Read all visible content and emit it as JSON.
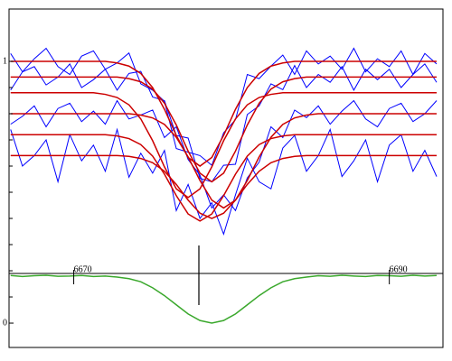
{
  "chart_data": {
    "type": "line",
    "x": [
      6666,
      6666.75,
      6667.5,
      6668.25,
      6669,
      6669.75,
      6670.5,
      6671.25,
      6672,
      6672.75,
      6673.5,
      6674.25,
      6675,
      6675.75,
      6676.5,
      6677.25,
      6678,
      6678.75,
      6679.5,
      6680.25,
      6681,
      6681.75,
      6682.5,
      6683.25,
      6684,
      6684.75,
      6685.5,
      6686.25,
      6687,
      6687.75,
      6688.5,
      6689.25,
      6690,
      6690.75,
      6691.5,
      6692.25,
      6693
    ],
    "series": [
      {
        "color": "#0000ff",
        "values": [
          1.03,
          0.96,
          1.01,
          1.05,
          0.98,
          0.95,
          1.02,
          1.04,
          0.97,
          0.994,
          1.032,
          0.914,
          0.89,
          0.847,
          0.667,
          0.653,
          0.64,
          0.603,
          0.727,
          0.777,
          0.95,
          0.934,
          0.982,
          1.024,
          0.95,
          1.04,
          0.99,
          1.02,
          0.97,
          1.05,
          0.96,
          1.01,
          0.98,
          1.04,
          0.95,
          1.03,
          0.99
        ]
      },
      {
        "color": "#0000ff",
        "values": [
          0.89,
          0.96,
          0.98,
          0.91,
          0.94,
          0.99,
          0.9,
          0.93,
          0.97,
          0.89,
          0.954,
          0.962,
          0.864,
          0.85,
          0.717,
          0.707,
          0.553,
          0.54,
          0.603,
          0.607,
          0.797,
          0.83,
          0.914,
          0.892,
          0.984,
          0.9,
          0.95,
          0.92,
          0.98,
          0.89,
          0.97,
          0.93,
          0.97,
          0.9,
          0.95,
          0.99,
          0.92
        ]
      },
      {
        "color": "#0000ff",
        "values": [
          0.76,
          0.79,
          0.83,
          0.75,
          0.82,
          0.84,
          0.77,
          0.81,
          0.76,
          0.85,
          0.78,
          0.795,
          0.814,
          0.709,
          0.75,
          0.625,
          0.565,
          0.44,
          0.49,
          0.43,
          0.555,
          0.615,
          0.75,
          0.709,
          0.814,
          0.785,
          0.83,
          0.76,
          0.81,
          0.85,
          0.78,
          0.75,
          0.82,
          0.84,
          0.77,
          0.8,
          0.85
        ]
      },
      {
        "color": "#0000ff",
        "values": [
          0.74,
          0.6,
          0.64,
          0.7,
          0.54,
          0.72,
          0.62,
          0.68,
          0.58,
          0.74,
          0.557,
          0.649,
          0.573,
          0.66,
          0.43,
          0.53,
          0.4,
          0.46,
          0.34,
          0.49,
          0.63,
          0.54,
          0.513,
          0.669,
          0.717,
          0.58,
          0.64,
          0.74,
          0.56,
          0.62,
          0.7,
          0.54,
          0.68,
          0.72,
          0.58,
          0.66,
          0.56
        ]
      },
      {
        "color": "#cc0000",
        "values": [
          1,
          1,
          1,
          1,
          1,
          1,
          1,
          1,
          1,
          0.994,
          0.982,
          0.954,
          0.9,
          0.817,
          0.717,
          0.633,
          0.6,
          0.633,
          0.717,
          0.817,
          0.9,
          0.954,
          0.982,
          0.994,
          1,
          1,
          1,
          1,
          1,
          1,
          1,
          1,
          1,
          1,
          1,
          1,
          1
        ]
      },
      {
        "color": "#cc0000",
        "values": [
          0.94,
          0.94,
          0.94,
          0.94,
          0.94,
          0.94,
          0.94,
          0.94,
          0.94,
          0.94,
          0.934,
          0.922,
          0.894,
          0.84,
          0.757,
          0.657,
          0.573,
          0.54,
          0.573,
          0.657,
          0.757,
          0.84,
          0.894,
          0.922,
          0.934,
          0.94,
          0.94,
          0.94,
          0.94,
          0.94,
          0.94,
          0.94,
          0.94,
          0.94,
          0.94,
          0.94,
          0.94
        ]
      },
      {
        "color": "#cc0000",
        "values": [
          0.88,
          0.88,
          0.88,
          0.88,
          0.88,
          0.88,
          0.88,
          0.88,
          0.874,
          0.862,
          0.834,
          0.78,
          0.697,
          0.597,
          0.513,
          0.48,
          0.513,
          0.597,
          0.697,
          0.78,
          0.834,
          0.862,
          0.874,
          0.88,
          0.88,
          0.88,
          0.88,
          0.88,
          0.88,
          0.88,
          0.88,
          0.88,
          0.88,
          0.88,
          0.88,
          0.88,
          0.88
        ]
      },
      {
        "color": "#cc0000",
        "values": [
          0.8,
          0.8,
          0.8,
          0.8,
          0.8,
          0.8,
          0.8,
          0.8,
          0.8,
          0.8,
          0.8,
          0.795,
          0.784,
          0.759,
          0.71,
          0.635,
          0.545,
          0.47,
          0.44,
          0.47,
          0.545,
          0.635,
          0.71,
          0.759,
          0.784,
          0.795,
          0.8,
          0.8,
          0.8,
          0.8,
          0.8,
          0.8,
          0.8,
          0.8,
          0.8,
          0.8,
          0.8
        ]
      },
      {
        "color": "#cc0000",
        "values": [
          0.72,
          0.72,
          0.72,
          0.72,
          0.72,
          0.72,
          0.72,
          0.72,
          0.72,
          0.715,
          0.705,
          0.682,
          0.638,
          0.569,
          0.487,
          0.417,
          0.39,
          0.417,
          0.487,
          0.569,
          0.638,
          0.682,
          0.705,
          0.715,
          0.72,
          0.72,
          0.72,
          0.72,
          0.72,
          0.72,
          0.72,
          0.72,
          0.72,
          0.72,
          0.72,
          0.72,
          0.72
        ]
      },
      {
        "color": "#cc0000",
        "values": [
          0.64,
          0.64,
          0.64,
          0.64,
          0.64,
          0.64,
          0.64,
          0.64,
          0.64,
          0.64,
          0.637,
          0.629,
          0.613,
          0.58,
          0.53,
          0.47,
          0.42,
          0.4,
          0.42,
          0.47,
          0.53,
          0.58,
          0.613,
          0.629,
          0.637,
          0.64,
          0.64,
          0.64,
          0.64,
          0.64,
          0.64,
          0.64,
          0.64,
          0.64,
          0.64,
          0.64,
          0.64
        ]
      },
      {
        "color": "#3aa82c",
        "values": [
          0.182,
          0.178,
          0.181,
          0.183,
          0.179,
          0.18,
          0.182,
          0.178,
          0.18,
          0.176,
          0.17,
          0.158,
          0.135,
          0.105,
          0.07,
          0.035,
          0.01,
          0,
          0.01,
          0.035,
          0.07,
          0.105,
          0.135,
          0.158,
          0.17,
          0.176,
          0.181,
          0.179,
          0.183,
          0.18,
          0.178,
          0.182,
          0.181,
          0.179,
          0.183,
          0.18,
          0.182
        ]
      }
    ],
    "xlim": [
      6665.9,
      6693.4
    ],
    "ylim": [
      -0.093,
      1.2
    ],
    "xticks": [
      6670,
      6690
    ],
    "yticks": [
      0,
      1
    ],
    "yminorticks": [
      0.1,
      0.2,
      0.3,
      0.4,
      0.5,
      0.6,
      0.7,
      0.8,
      0.9
    ]
  }
}
